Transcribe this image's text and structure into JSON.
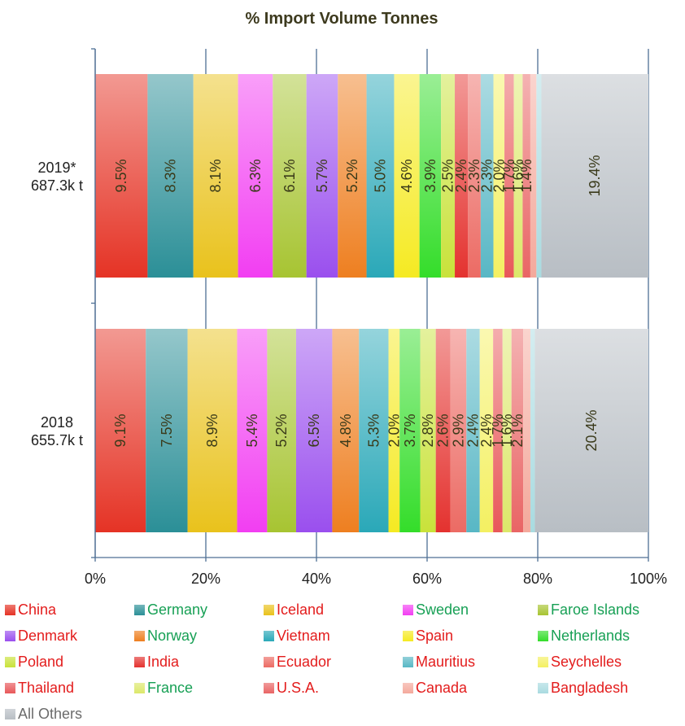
{
  "chart_data": {
    "type": "bar",
    "orientation": "horizontal",
    "stacked": "percent",
    "title": "% Import Volume Tonnes",
    "categories": [
      {
        "line1": "2019*",
        "line2": "687.3k t"
      },
      {
        "line1": "2018",
        "line2": "655.7k t"
      }
    ],
    "x_ticks": [
      "0%",
      "20%",
      "40%",
      "60%",
      "80%",
      "100%"
    ],
    "xlim": [
      0,
      100
    ],
    "grid": true,
    "legend_position": "bottom",
    "series": [
      {
        "name": "China",
        "values": [
          9.5,
          9.1
        ],
        "labels": [
          "9.5%",
          "9.1%"
        ],
        "color": "#e53325",
        "label_color": "#e31c1c"
      },
      {
        "name": "Germany",
        "values": [
          8.3,
          7.5
        ],
        "labels": [
          "8.3%",
          "7.5%"
        ],
        "color": "#2b8f97",
        "label_color": "#17a055"
      },
      {
        "name": "Iceland",
        "values": [
          8.1,
          8.9
        ],
        "labels": [
          "8.1%",
          "8.9%"
        ],
        "color": "#e9c21c",
        "label_color": "#e31c1c"
      },
      {
        "name": "Sweden",
        "values": [
          6.3,
          5.4
        ],
        "labels": [
          "6.3%",
          "5.4%"
        ],
        "color": "#f23ef2",
        "label_color": "#17a055"
      },
      {
        "name": "Faroe Islands",
        "values": [
          6.1,
          5.2
        ],
        "labels": [
          "6.1%",
          "5.2%"
        ],
        "color": "#a7c432",
        "label_color": "#17a055"
      },
      {
        "name": "Denmark",
        "values": [
          5.7,
          6.5
        ],
        "labels": [
          "5.7%",
          "6.5%"
        ],
        "color": "#9a4fee",
        "label_color": "#e31c1c"
      },
      {
        "name": "Norway",
        "values": [
          5.2,
          4.8
        ],
        "labels": [
          "5.2%",
          "4.8%"
        ],
        "color": "#ee7f20",
        "label_color": "#17a055"
      },
      {
        "name": "Vietnam",
        "values": [
          5.0,
          5.3
        ],
        "labels": [
          "5.0%",
          "5.3%"
        ],
        "color": "#2aa8b8",
        "label_color": "#e31c1c"
      },
      {
        "name": "Spain",
        "values": [
          4.6,
          2.0
        ],
        "labels": [
          "4.6%",
          "2.0%"
        ],
        "color": "#f5ea22",
        "label_color": "#e31c1c"
      },
      {
        "name": "Netherlands",
        "values": [
          3.9,
          3.7
        ],
        "labels": [
          "3.9%",
          "3.7%"
        ],
        "color": "#34dd2a",
        "label_color": "#17a055"
      },
      {
        "name": "Poland",
        "values": [
          2.5,
          2.8
        ],
        "labels": [
          "2.5%",
          "2.8%"
        ],
        "color": "#c9e23a",
        "label_color": "#e31c1c"
      },
      {
        "name": "India",
        "values": [
          2.4,
          2.6
        ],
        "labels": [
          "2.4%",
          "2.6%"
        ],
        "color": "#e4322f",
        "label_color": "#e31c1c"
      },
      {
        "name": "Ecuador",
        "values": [
          2.3,
          2.9
        ],
        "labels": [
          "2.3%",
          "2.9%"
        ],
        "color": "#ec6b64",
        "label_color": "#e31c1c"
      },
      {
        "name": "Mauritius",
        "values": [
          2.3,
          2.4
        ],
        "labels": [
          "2.3%",
          "2.4%"
        ],
        "color": "#58b7c5",
        "label_color": "#e31c1c"
      },
      {
        "name": "Seychelles",
        "values": [
          2.0,
          2.4
        ],
        "labels": [
          "2.0%",
          "2.4%"
        ],
        "color": "#f4f062",
        "label_color": "#e31c1c"
      },
      {
        "name": "Thailand",
        "values": [
          1.7,
          1.7
        ],
        "labels": [
          "1.7%",
          "1.7%"
        ],
        "color": "#e8585a",
        "label_color": "#e31c1c"
      },
      {
        "name": "France",
        "values": [
          1.6,
          1.6
        ],
        "labels": [
          "1.6%",
          "1.6%"
        ],
        "color": "#dce86a",
        "label_color": "#17a055"
      },
      {
        "name": "U.S.A.",
        "values": [
          1.4,
          2.1
        ],
        "labels": [
          "1.4%",
          "2.1%"
        ],
        "color": "#e96565",
        "label_color": "#e31c1c"
      },
      {
        "name": "Canada",
        "values": [
          1.1,
          1.3
        ],
        "labels": [
          "",
          ""
        ],
        "color": "#f4a99c",
        "label_color": "#e31c1c"
      },
      {
        "name": "Bangladesh",
        "values": [
          0.9,
          0.8
        ],
        "labels": [
          "",
          ""
        ],
        "color": "#a9dbe0",
        "label_color": "#e31c1c"
      },
      {
        "name": "All Others",
        "values": [
          19.4,
          20.4
        ],
        "labels": [
          "19.4%",
          "20.4%"
        ],
        "color": "#b8bec4",
        "label_color": "#6b6b6b"
      }
    ]
  }
}
